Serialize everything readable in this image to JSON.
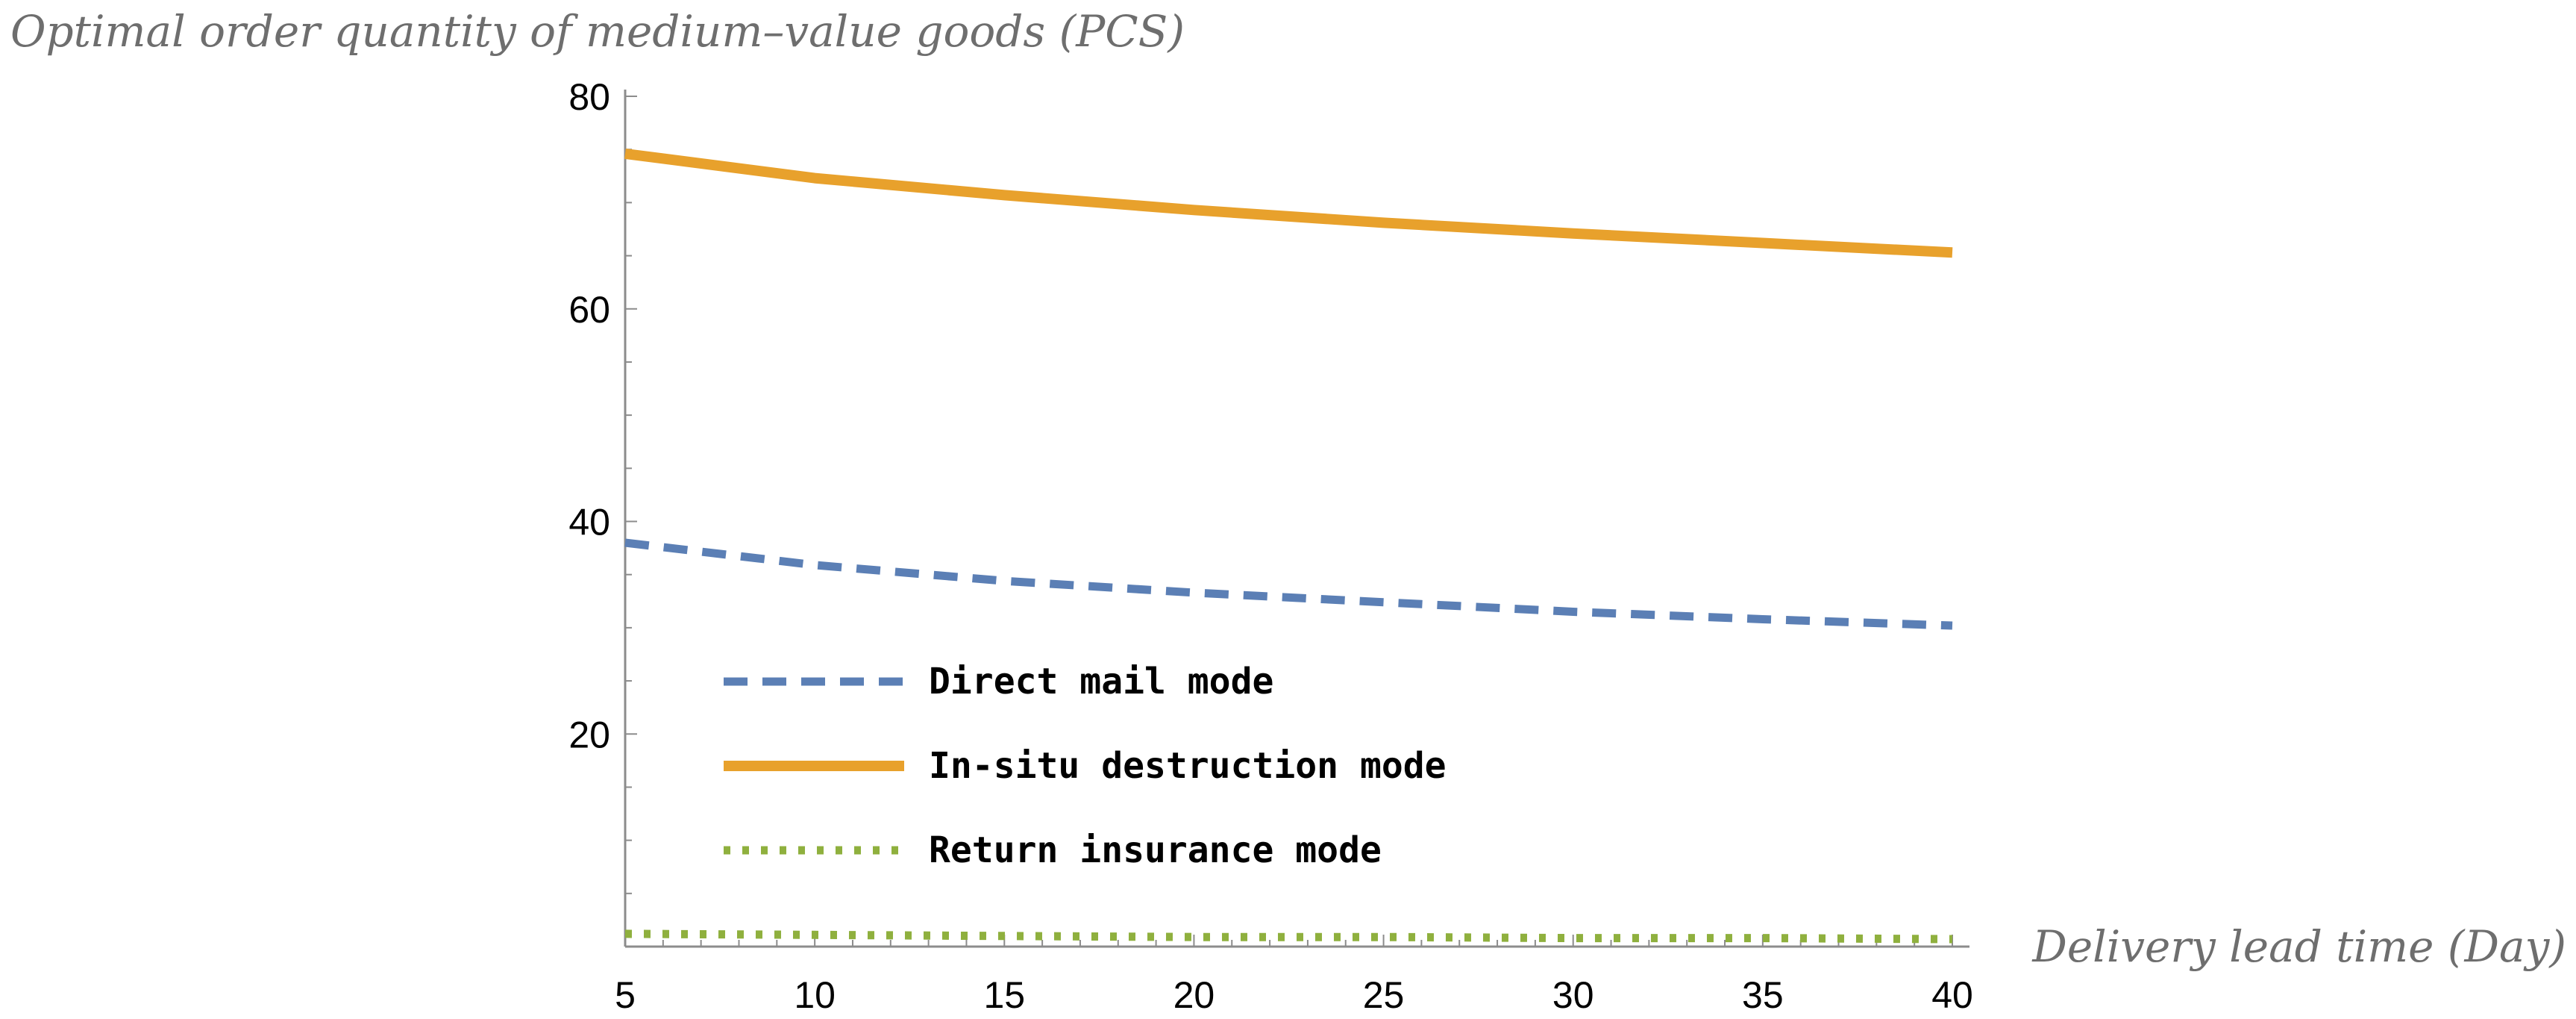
{
  "chart_data": {
    "type": "line",
    "ylabel": "Optimal order quantity of medium–value goods (PCS)",
    "xlabel": "Delivery lead time (Day)",
    "xlim": [
      5,
      40
    ],
    "ylim": [
      0,
      80
    ],
    "x_ticks": [
      5,
      10,
      15,
      20,
      25,
      30,
      35,
      40
    ],
    "y_ticks": [
      20,
      40,
      60,
      80
    ],
    "x_minor_step": 1,
    "y_minor_step": 5,
    "grid": false,
    "legend_position": "lower-left",
    "series": [
      {
        "name": "Direct mail mode",
        "style": "dashed",
        "color": "#5b7fb5",
        "x": [
          5,
          10,
          15,
          20,
          25,
          30,
          35,
          40
        ],
        "values": [
          38.0,
          35.9,
          34.4,
          33.3,
          32.4,
          31.5,
          30.8,
          30.2
        ]
      },
      {
        "name": "In-situ destruction mode",
        "style": "solid",
        "color": "#e8a12c",
        "x": [
          5,
          10,
          15,
          20,
          25,
          30,
          35,
          40
        ],
        "values": [
          74.6,
          72.3,
          70.7,
          69.3,
          68.1,
          67.1,
          66.2,
          65.3
        ]
      },
      {
        "name": "Return insurance mode",
        "style": "dotted",
        "color": "#8fb03e",
        "x": [
          5,
          10,
          15,
          20,
          25,
          30,
          35,
          40
        ],
        "values": [
          1.2,
          1.1,
          1.0,
          0.9,
          0.9,
          0.8,
          0.8,
          0.7
        ]
      }
    ]
  }
}
